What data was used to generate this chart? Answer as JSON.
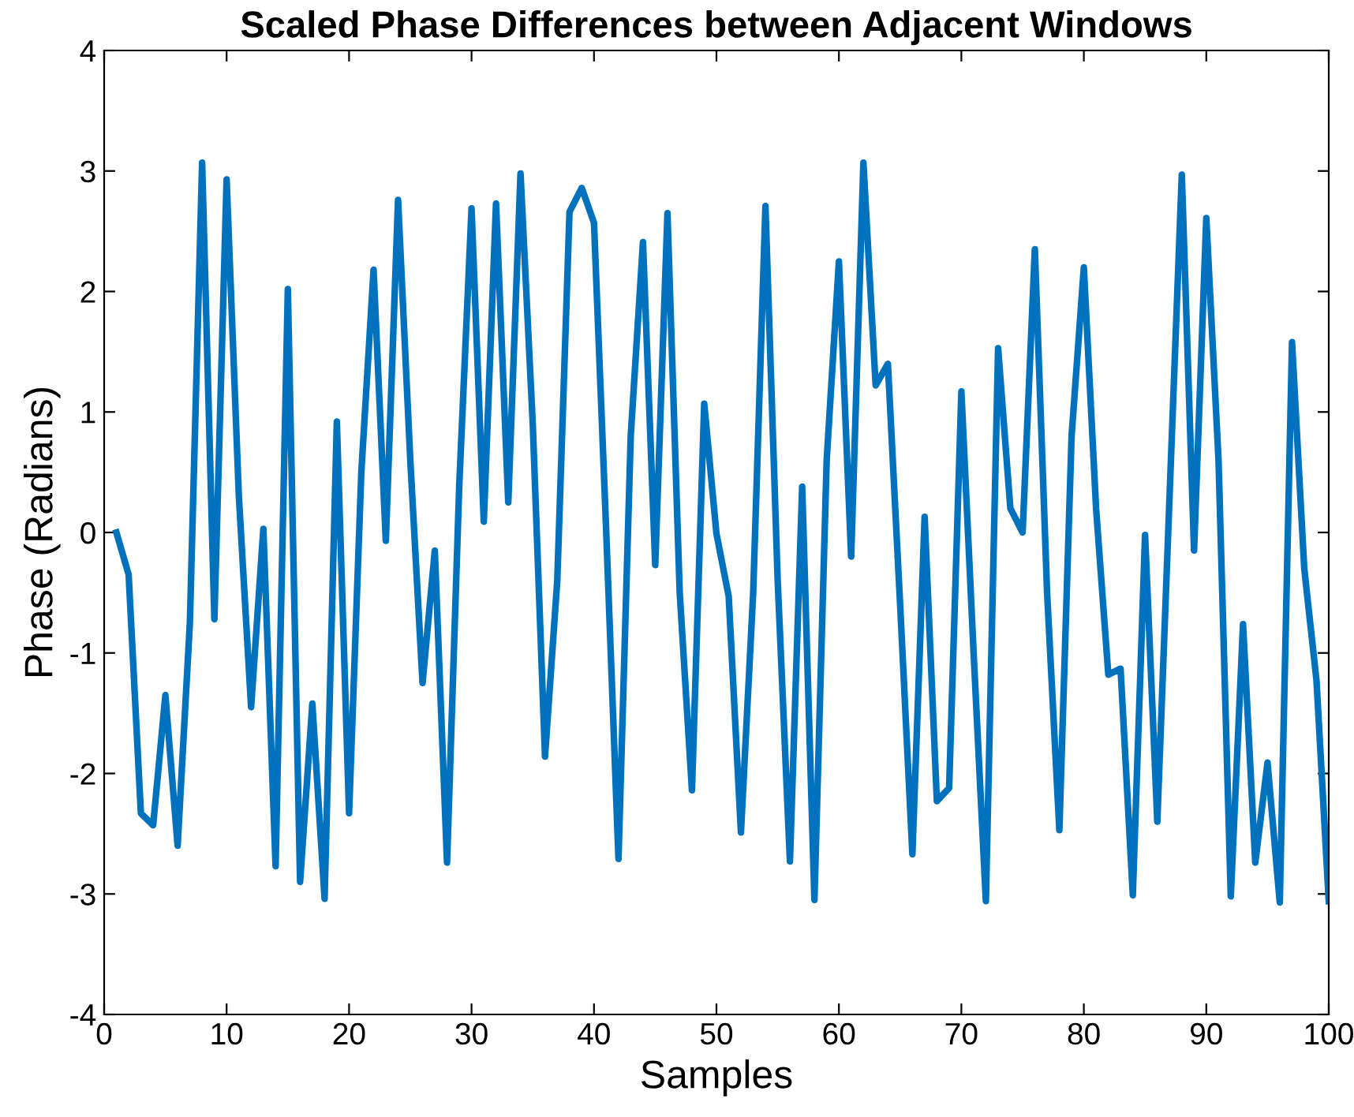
{
  "chart_data": {
    "type": "line",
    "title": "Scaled Phase Differences between Adjacent Windows",
    "xlabel": "Samples",
    "ylabel": "Phase (Radians)",
    "xlim": [
      0,
      100
    ],
    "ylim": [
      -4,
      4
    ],
    "xticks": [
      0,
      10,
      20,
      30,
      40,
      50,
      60,
      70,
      80,
      90,
      100
    ],
    "yticks": [
      -4,
      -3,
      -2,
      -1,
      0,
      1,
      2,
      3,
      4
    ],
    "grid": false,
    "legend": false,
    "marker": "none",
    "line_style": "solid",
    "x": [
      1,
      2,
      3,
      4,
      5,
      6,
      7,
      8,
      9,
      10,
      11,
      12,
      13,
      14,
      15,
      16,
      17,
      18,
      19,
      20,
      21,
      22,
      23,
      24,
      25,
      26,
      27,
      28,
      29,
      30,
      31,
      32,
      33,
      34,
      35,
      36,
      37,
      38,
      39,
      40,
      41,
      42,
      43,
      44,
      45,
      46,
      47,
      48,
      49,
      50,
      51,
      52,
      53,
      54,
      55,
      56,
      57,
      58,
      59,
      60,
      61,
      62,
      63,
      64,
      65,
      66,
      67,
      68,
      69,
      70,
      71,
      72,
      73,
      74,
      75,
      76,
      77,
      78,
      79,
      80,
      81,
      82,
      83,
      84,
      85,
      86,
      87,
      88,
      89,
      90,
      91,
      92,
      93,
      94,
      95,
      96,
      97,
      98,
      99,
      100
    ],
    "series": [
      {
        "color": "#0072bd",
        "values": [
          0,
          -0.35,
          -2.33,
          -2.43,
          -1.35,
          -2.6,
          -0.75,
          3.07,
          -0.72,
          2.93,
          0.3,
          -1.45,
          0.03,
          -2.77,
          2.02,
          -2.9,
          -1.42,
          -3.04,
          0.92,
          -2.33,
          0.5,
          2.18,
          -0.07,
          2.76,
          0.6,
          -1.25,
          -0.15,
          -2.74,
          0.4,
          2.69,
          0.09,
          2.73,
          0.25,
          2.98,
          0.9,
          -1.86,
          -0.4,
          2.66,
          2.86,
          2.57,
          0,
          -2.71,
          0.8,
          2.41,
          -0.27,
          2.65,
          -0.5,
          -2.14,
          1.07,
          -0.01,
          -0.53,
          -2.49,
          -0.5,
          2.71,
          -0.4,
          -2.73,
          0.38,
          -3.05,
          0.6,
          2.25,
          -0.2,
          3.07,
          1.22,
          1.4,
          -0.6,
          -2.67,
          0.13,
          -2.23,
          -2.12,
          1.17,
          -1.0,
          -3.06,
          1.53,
          0.2,
          0.0,
          2.35,
          -0.5,
          -2.47,
          0.8,
          2.2,
          0.2,
          -1.18,
          -1.13,
          -3.01,
          -0.02,
          -2.4,
          0.3,
          2.97,
          -0.15,
          2.61,
          0.6,
          -3.02,
          -0.76,
          -2.74,
          -1.91,
          -3.07,
          1.58,
          -0.3,
          -1.23,
          -3.06
        ]
      }
    ]
  }
}
